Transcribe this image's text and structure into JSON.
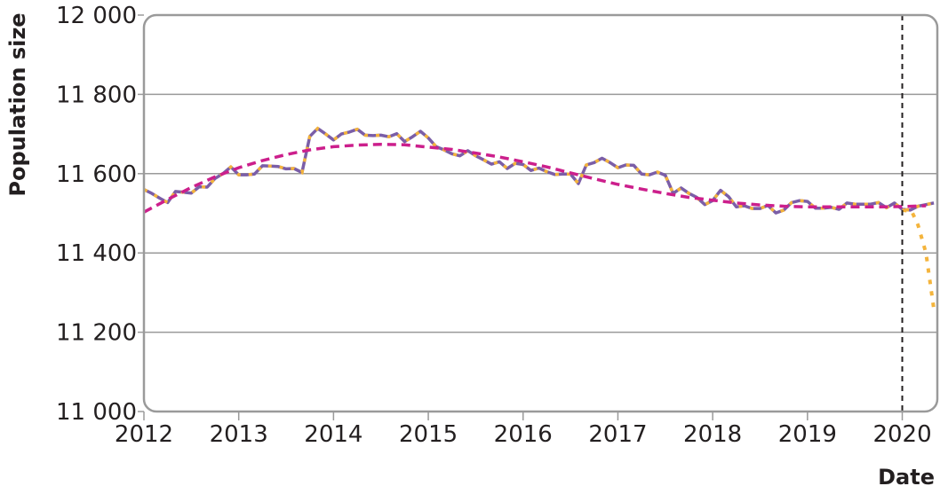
{
  "chart_data": {
    "type": "line",
    "title": "",
    "xlabel": "Date",
    "ylabel": "Population size",
    "xlim": [
      2012.0,
      2020.37
    ],
    "ylim": [
      11000,
      12000
    ],
    "x_ticks": [
      {
        "value": 2012,
        "label": "2012"
      },
      {
        "value": 2013,
        "label": "2013"
      },
      {
        "value": 2014,
        "label": "2014"
      },
      {
        "value": 2015,
        "label": "2015"
      },
      {
        "value": 2016,
        "label": "2016"
      },
      {
        "value": 2017,
        "label": "2017"
      },
      {
        "value": 2018,
        "label": "2018"
      },
      {
        "value": 2019,
        "label": "2019"
      },
      {
        "value": 2020,
        "label": "2020"
      }
    ],
    "y_ticks": [
      {
        "value": 11000,
        "label": "11 000"
      },
      {
        "value": 11200,
        "label": "11 200"
      },
      {
        "value": 11400,
        "label": "11 400"
      },
      {
        "value": 11600,
        "label": "11 600"
      },
      {
        "value": 11800,
        "label": "11 800"
      },
      {
        "value": 12000,
        "label": "12 000"
      }
    ],
    "grid": {
      "horizontal": true,
      "vertical": false
    },
    "vertical_marker": {
      "x": 2020.0,
      "style": "dashed",
      "color": "#231f20"
    },
    "colors": {
      "observed": "#7b5ea7",
      "model": "#f4b43c",
      "trend": "#cc1f8c",
      "grid": "#9a9a9a",
      "frame": "#9a9a9a"
    },
    "series": [
      {
        "key": "observed",
        "style": "solid",
        "x": [
          2012.0,
          2012.083,
          2012.167,
          2012.25,
          2012.333,
          2012.417,
          2012.5,
          2012.583,
          2012.667,
          2012.75,
          2012.833,
          2012.917,
          2013.0,
          2013.083,
          2013.167,
          2013.25,
          2013.333,
          2013.417,
          2013.5,
          2013.583,
          2013.667,
          2013.75,
          2013.833,
          2013.917,
          2014.0,
          2014.083,
          2014.167,
          2014.25,
          2014.333,
          2014.417,
          2014.5,
          2014.583,
          2014.667,
          2014.75,
          2014.833,
          2014.917,
          2015.0,
          2015.083,
          2015.167,
          2015.25,
          2015.333,
          2015.417,
          2015.5,
          2015.583,
          2015.667,
          2015.75,
          2015.833,
          2015.917,
          2016.0,
          2016.083,
          2016.167,
          2016.25,
          2016.333,
          2016.417,
          2016.5,
          2016.583,
          2016.667,
          2016.75,
          2016.833,
          2016.917,
          2017.0,
          2017.083,
          2017.167,
          2017.25,
          2017.333,
          2017.417,
          2017.5,
          2017.583,
          2017.667,
          2017.75,
          2017.833,
          2017.917,
          2018.0,
          2018.083,
          2018.167,
          2018.25,
          2018.333,
          2018.417,
          2018.5,
          2018.583,
          2018.667,
          2018.75,
          2018.833,
          2018.917,
          2019.0,
          2019.083,
          2019.167,
          2019.25,
          2019.333,
          2019.417,
          2019.5,
          2019.583,
          2019.667,
          2019.75,
          2019.833,
          2019.917,
          2020.0,
          2020.083,
          2020.167,
          2020.25,
          2020.333
        ],
        "values": [
          11560,
          11550,
          11538,
          11527,
          11555,
          11553,
          11551,
          11567,
          11566,
          11588,
          11600,
          11617,
          11597,
          11597,
          11599,
          11620,
          11619,
          11618,
          11612,
          11613,
          11603,
          11694,
          11714,
          11700,
          11685,
          11700,
          11705,
          11712,
          11697,
          11696,
          11697,
          11693,
          11701,
          11681,
          11693,
          11707,
          11690,
          11668,
          11660,
          11650,
          11645,
          11658,
          11645,
          11635,
          11624,
          11630,
          11613,
          11626,
          11623,
          11608,
          11614,
          11605,
          11598,
          11599,
          11599,
          11575,
          11622,
          11628,
          11639,
          11628,
          11615,
          11622,
          11621,
          11599,
          11597,
          11604,
          11596,
          11550,
          11564,
          11550,
          11540,
          11522,
          11532,
          11558,
          11542,
          11516,
          11519,
          11512,
          11512,
          11520,
          11501,
          11508,
          11527,
          11532,
          11530,
          11513,
          11513,
          11515,
          11510,
          11526,
          11523,
          11523,
          11523,
          11527,
          11514,
          11526,
          11510,
          11508,
          11518,
          11522,
          11526
        ]
      },
      {
        "key": "model",
        "style": "dotted",
        "x": [
          2020.0,
          2020.1,
          2020.167,
          2020.25,
          2020.333
        ],
        "values": [
          11508,
          11505,
          11470,
          11400,
          11258
        ]
      },
      {
        "key": "trend",
        "style": "dashed",
        "x": [
          2012.0,
          2012.25,
          2012.5,
          2012.75,
          2013.0,
          2013.25,
          2013.5,
          2013.75,
          2014.0,
          2014.25,
          2014.5,
          2014.75,
          2015.0,
          2015.25,
          2015.5,
          2015.75,
          2016.0,
          2016.25,
          2016.5,
          2016.75,
          2017.0,
          2017.25,
          2017.5,
          2017.75,
          2018.0,
          2018.25,
          2018.5,
          2018.75,
          2019.0,
          2019.25,
          2019.5,
          2019.75,
          2020.0,
          2020.25
        ],
        "values": [
          11503,
          11535,
          11565,
          11592,
          11615,
          11633,
          11648,
          11660,
          11668,
          11672,
          11674,
          11673,
          11667,
          11661,
          11652,
          11642,
          11630,
          11617,
          11602,
          11587,
          11573,
          11561,
          11550,
          11540,
          11533,
          11526,
          11521,
          11518,
          11516,
          11516,
          11516,
          11516,
          11517,
          11519
        ]
      }
    ]
  }
}
